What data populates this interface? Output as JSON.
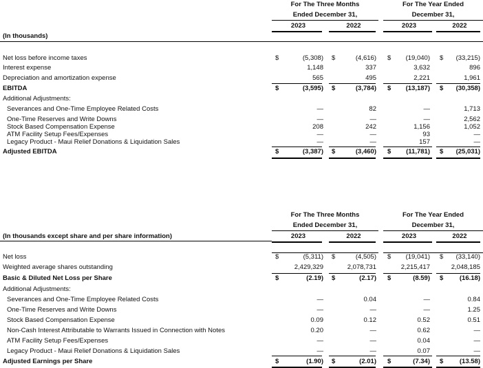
{
  "tables": [
    {
      "header": {
        "three_months": [
          "For The Three Months",
          "Ended December 31,"
        ],
        "year": [
          "For The Year Ended",
          "December 31,"
        ],
        "years": [
          "2023",
          "2022",
          "2023",
          "2022"
        ],
        "units": "(In thousands)"
      },
      "rows": [
        {
          "label": "Net loss before income taxes",
          "bold": false,
          "indent": false,
          "dollar": true,
          "values": [
            "(5,308)",
            "(4,616)",
            "(19,040)",
            "(33,215)"
          ]
        },
        {
          "label": "Interest expense",
          "bold": false,
          "indent": false,
          "dollar": false,
          "values": [
            "1,148",
            "337",
            "3,632",
            "896"
          ]
        },
        {
          "label": "Depreciation and amortization expense",
          "bold": false,
          "indent": false,
          "dollar": false,
          "values": [
            "565",
            "495",
            "2,221",
            "1,961"
          ]
        },
        {
          "label": "EBITDA",
          "bold": true,
          "indent": false,
          "dollar": true,
          "values": [
            "(3,595)",
            "(3,784)",
            "(13,187)",
            "(30,358)"
          ]
        },
        {
          "label": "Additional Adjustments:",
          "bold": false,
          "indent": false,
          "dollar": false,
          "values": [
            "",
            "",
            "",
            ""
          ]
        },
        {
          "label": "Severances and One-Time Employee Related Costs",
          "bold": false,
          "indent": true,
          "dollar": false,
          "values": [
            "—",
            "82",
            "—",
            "1,713"
          ]
        },
        {
          "label": "One-Time Reserves and Write Downs",
          "bold": false,
          "indent": true,
          "dollar": false,
          "values": [
            "—",
            "—",
            "—",
            "2,562"
          ]
        },
        {
          "label": "Stock Based Compensation Expense",
          "bold": false,
          "indent": true,
          "dollar": false,
          "values": [
            "208",
            "242",
            "1,156",
            "1,052"
          ]
        },
        {
          "label": "ATM Facility Setup Fees/Expenses",
          "bold": false,
          "indent": true,
          "dollar": false,
          "values": [
            "—",
            "—",
            "93",
            "—"
          ]
        },
        {
          "label": "Legacy Product - Maui Relief Donations & Liquidation Sales",
          "bold": false,
          "indent": true,
          "dollar": false,
          "values": [
            "—",
            "—",
            "157",
            "—"
          ]
        },
        {
          "label": "Adjusted EBITDA",
          "bold": true,
          "indent": false,
          "dollar": true,
          "values": [
            "(3,387)",
            "(3,460)",
            "(11,781)",
            "(25,031)"
          ]
        }
      ]
    },
    {
      "header": {
        "three_months": [
          "For The Three Months",
          "Ended December 31,"
        ],
        "year": [
          "For The Year Ended",
          "December 31,"
        ],
        "years": [
          "2023",
          "2022",
          "2023",
          "2022"
        ],
        "units": "(In thousands except share and per share information)"
      },
      "rows": [
        {
          "label": "Net loss",
          "bold": false,
          "indent": false,
          "dollar": true,
          "values": [
            "(5,311)",
            "(4,505)",
            "(19,041)",
            "(33,140)"
          ]
        },
        {
          "label": "Weighted average shares outstanding",
          "bold": false,
          "indent": false,
          "dollar": false,
          "values": [
            "2,429,329",
            "2,078,731",
            "2,215,417",
            "2,048,185"
          ]
        },
        {
          "label": "Basic & Diluted Net Loss per Share",
          "bold": true,
          "indent": false,
          "dollar": true,
          "values": [
            "(2.19)",
            "(2.17)",
            "(8.59)",
            "(16.18)"
          ]
        },
        {
          "label": "Additional Adjustments:",
          "bold": false,
          "indent": false,
          "dollar": false,
          "values": [
            "",
            "",
            "",
            ""
          ]
        },
        {
          "label": "Severances and One-Time Employee Related Costs",
          "bold": false,
          "indent": true,
          "dollar": false,
          "values": [
            "—",
            "0.04",
            "—",
            "0.84"
          ]
        },
        {
          "label": "One-Time Reserves and Write Downs",
          "bold": false,
          "indent": true,
          "dollar": false,
          "values": [
            "—",
            "—",
            "—",
            "1.25"
          ]
        },
        {
          "label": "Stock Based Compensation Expense",
          "bold": false,
          "indent": true,
          "dollar": false,
          "values": [
            "0.09",
            "0.12",
            "0.52",
            "0.51"
          ]
        },
        {
          "label": "Non-Cash Interest Attributable to Warrants Issued in Connection with Notes",
          "bold": false,
          "indent": true,
          "dollar": false,
          "values": [
            "0.20",
            "—",
            "0.62",
            "—"
          ]
        },
        {
          "label": "ATM Facility Setup Fees/Expenses",
          "bold": false,
          "indent": true,
          "dollar": false,
          "values": [
            "—",
            "—",
            "0.04",
            "—"
          ]
        },
        {
          "label": "Legacy Product - Maui Relief Donations & Liquidation Sales",
          "bold": false,
          "indent": true,
          "dollar": false,
          "values": [
            "—",
            "—",
            "0.07",
            "—"
          ]
        },
        {
          "label": "Adjusted Earnings per Share",
          "bold": true,
          "indent": false,
          "dollar": true,
          "values": [
            "(1.90)",
            "(2.01)",
            "(7.34)",
            "(13.58)"
          ]
        }
      ]
    }
  ]
}
